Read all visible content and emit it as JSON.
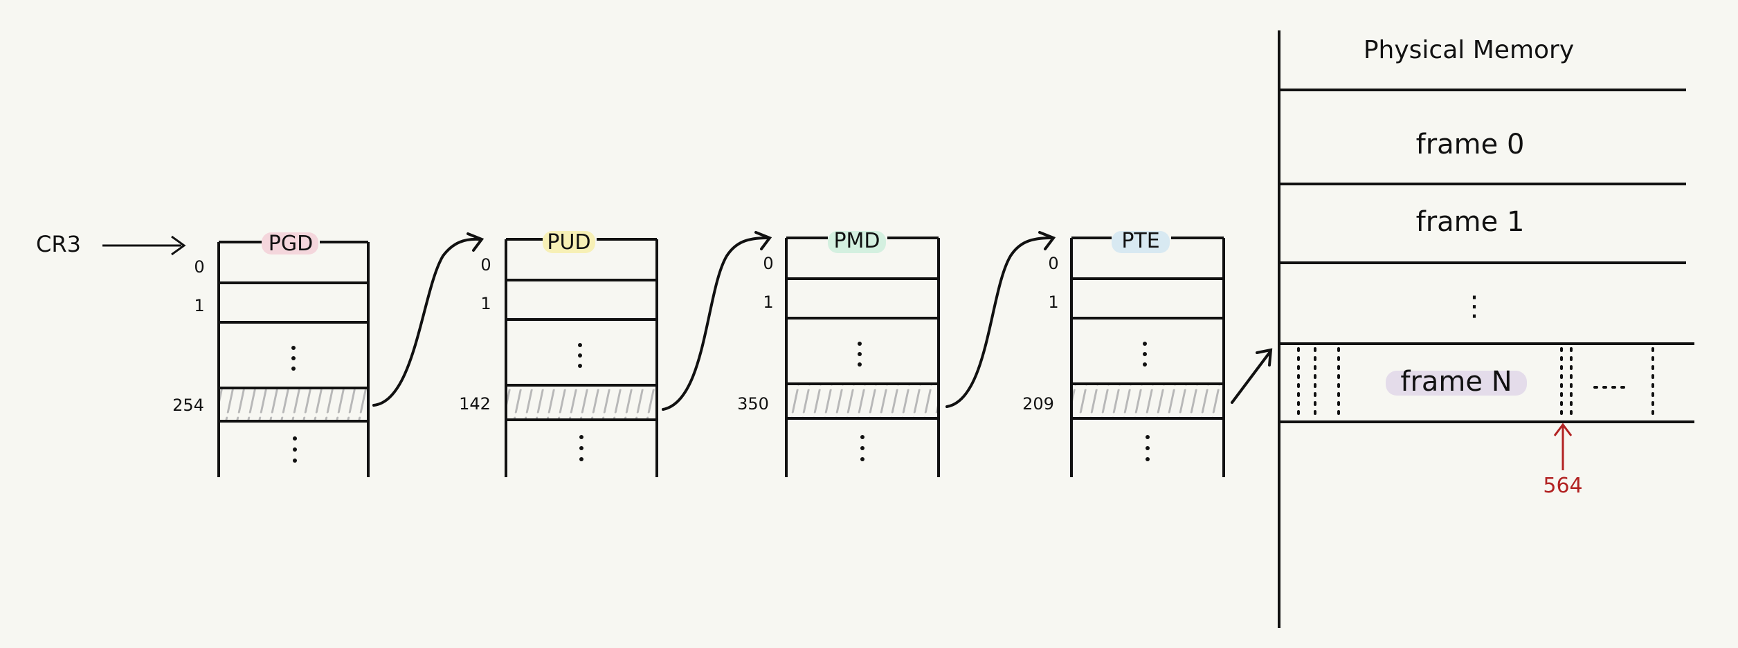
{
  "cr3_label": "CR3",
  "tables": [
    {
      "label": "PGD",
      "highlight": "#f4d6dc",
      "index_labels": [
        "0",
        "1",
        "254"
      ]
    },
    {
      "label": "PUD",
      "highlight": "#f7f0b6",
      "index_labels": [
        "0",
        "1",
        "142"
      ]
    },
    {
      "label": "PMD",
      "highlight": "#d4f0e0",
      "index_labels": [
        "0",
        "1",
        "350"
      ]
    },
    {
      "label": "PTE",
      "highlight": "#d8e9f2",
      "index_labels": [
        "0",
        "1",
        "209"
      ]
    }
  ],
  "physical_memory": {
    "title": "Physical Memory",
    "frames": [
      "frame 0",
      "frame 1",
      "frame N"
    ],
    "ellipsis": "⋮",
    "offset_label": "564",
    "offset_color": "#b22222",
    "frame_n_highlight": "#e4dcea"
  },
  "colors": {
    "ink": "#111111",
    "hatch": "#b8b8b8",
    "background": "#f7f7f2"
  }
}
